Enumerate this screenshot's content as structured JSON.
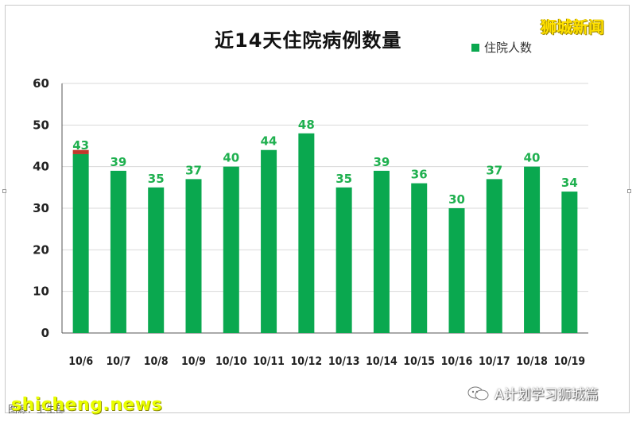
{
  "chart_data": {
    "type": "bar",
    "title": "近14天住院病例数量",
    "categories": [
      "10/6",
      "10/7",
      "10/8",
      "10/9",
      "10/10",
      "10/11",
      "10/12",
      "10/13",
      "10/14",
      "10/15",
      "10/16",
      "10/17",
      "10/18",
      "10/19"
    ],
    "series": [
      {
        "name": "住院人数",
        "values": [
          43,
          39,
          35,
          37,
          40,
          44,
          48,
          35,
          39,
          36,
          30,
          37,
          40,
          34
        ]
      }
    ],
    "extra_segment": {
      "category": "10/6",
      "from": 43,
      "to": 44,
      "color": "#c0392b"
    },
    "data_labels": [
      "43",
      "39",
      "35",
      "37",
      "40",
      "44",
      "48",
      "35",
      "39",
      "36",
      "30",
      "37",
      "40",
      "34"
    ],
    "ylim": [
      0,
      60
    ],
    "yticks": [
      0,
      10,
      20,
      30,
      40,
      50,
      60
    ],
    "grid": true,
    "legend_position": "top-right",
    "colors": {
      "bar": "#0aa84f",
      "label": "#1fb04f",
      "grid": "#d9d9d9"
    }
  },
  "watermarks": {
    "top_right": "狮城新闻",
    "bottom_left": "shicheng.news",
    "source": "图源：卫生部",
    "wechat_account": "A计划学习狮城篇"
  },
  "icons": {
    "wechat": "wechat-icon"
  }
}
